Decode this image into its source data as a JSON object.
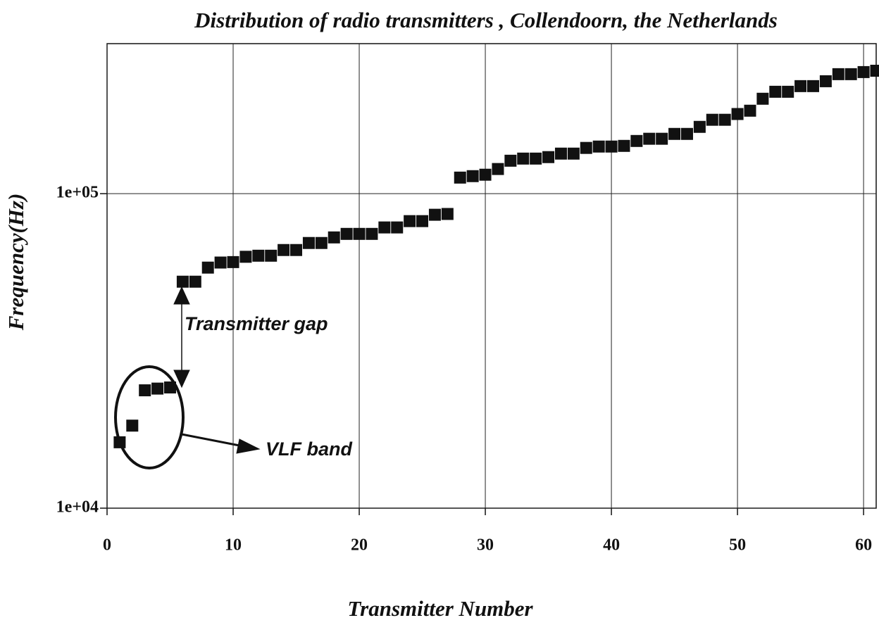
{
  "chart_data": {
    "type": "scatter",
    "title": "Distribution of radio transmitters , Collendoorn, the Netherlands",
    "x_label": "Transmitter Number",
    "y_label": "Frequency(Hz)",
    "annotations": [
      "Transmitter gap",
      "VLF band"
    ],
    "color": "#111111",
    "log_y": true,
    "grid": true,
    "x": [
      1,
      2,
      3,
      4,
      5,
      6,
      7,
      8,
      9,
      10,
      11,
      12,
      13,
      14,
      15,
      16,
      17,
      18,
      19,
      20,
      21,
      22,
      23,
      24,
      25,
      26,
      27,
      28,
      29,
      30,
      31,
      32,
      33,
      34,
      35,
      36,
      37,
      38,
      39,
      40,
      41,
      42,
      43,
      44,
      45,
      46,
      47,
      48,
      49,
      50,
      51,
      52,
      53,
      54,
      55,
      56,
      57,
      58,
      59,
      60,
      61
    ],
    "values": [
      16200,
      18300,
      23700,
      24000,
      24200,
      52500,
      52500,
      58200,
      60400,
      60600,
      63000,
      63500,
      63500,
      66200,
      66200,
      69700,
      69700,
      72600,
      74500,
      74500,
      74500,
      78100,
      78100,
      81800,
      81800,
      85700,
      86200,
      112500,
      113700,
      114900,
      119800,
      127300,
      129300,
      129300,
      130700,
      134100,
      134100,
      139800,
      141200,
      141200,
      141900,
      147100,
      149500,
      149500,
      154900,
      154900,
      163100,
      171800,
      171800,
      179200,
      183600,
      200400,
      210900,
      210900,
      219800,
      219800,
      227800,
      239900,
      239900,
      243600,
      246000
    ],
    "xlim": [
      0,
      61
    ],
    "xticks": [
      0,
      10,
      20,
      30,
      40,
      50,
      60
    ],
    "ylim": [
      10000,
      300000
    ],
    "yticks": [
      {
        "value": 10000,
        "label": "1e+04"
      },
      {
        "value": 100000,
        "label": "1e+05"
      }
    ]
  }
}
